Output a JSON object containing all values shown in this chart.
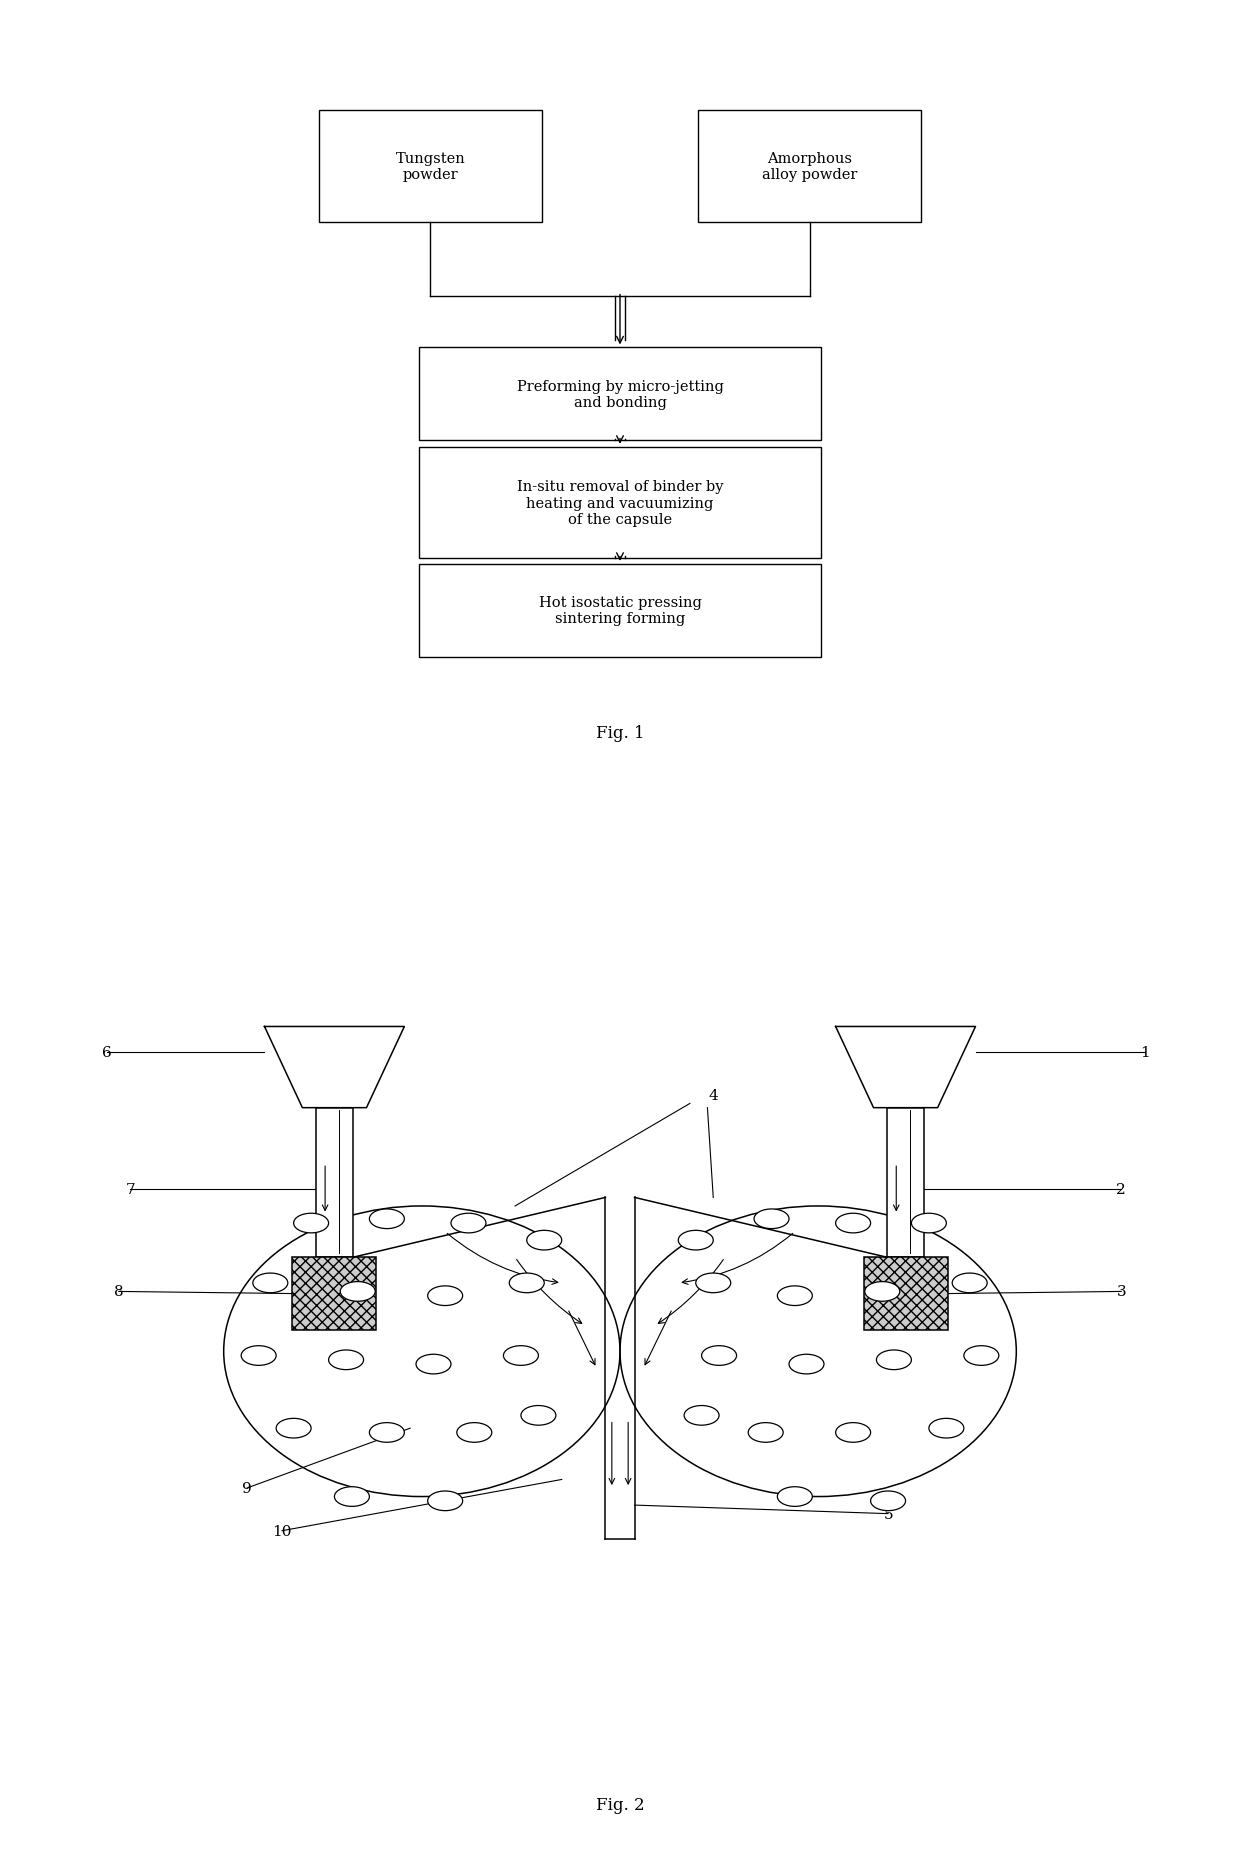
{
  "fig1_caption": "Fig. 1",
  "fig2_caption": "Fig. 2",
  "box1_text": "Tungsten\npowder",
  "box2_text": "Amorphous\nalloy powder",
  "box3_text": "Preforming by micro-jetting\nand bonding",
  "box4_text": "In-situ removal of binder by\nheating and vacuumizing\nof the capsule",
  "box5_text": "Hot isostatic pressing\nsintering forming",
  "bg_color": "#ffffff",
  "box_color": "#ffffff",
  "box_edge": "#000000",
  "arrow_color": "#000000",
  "label_color": "#000000"
}
